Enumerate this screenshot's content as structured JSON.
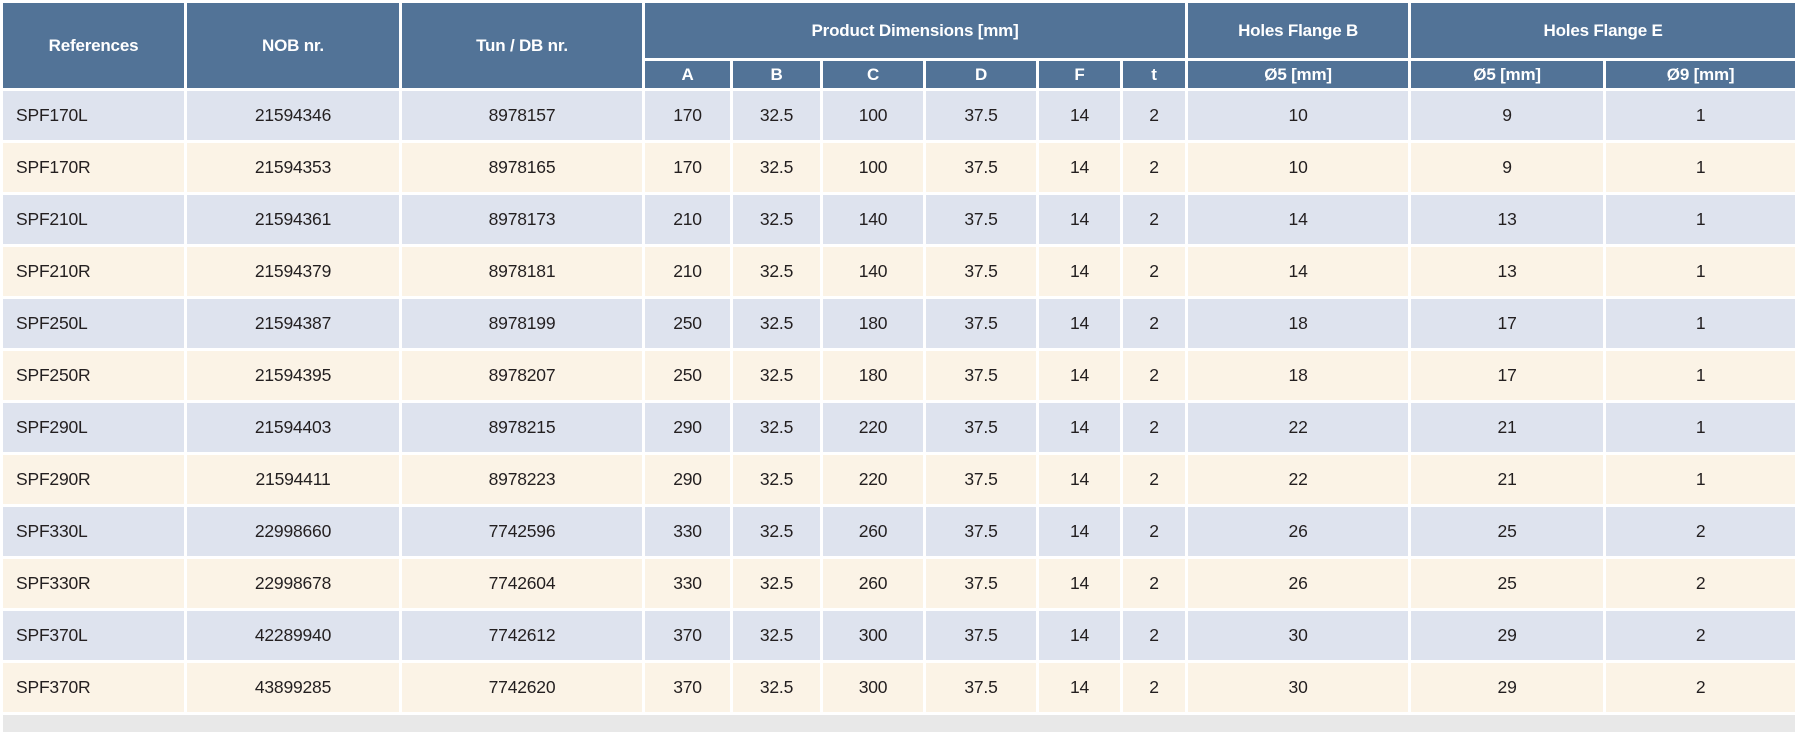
{
  "colors": {
    "header_bg": "#527397",
    "header_text": "#ffffff",
    "row_blue": "#dee3ee",
    "row_cream": "#fbf3e6",
    "body_text": "#231f20",
    "grid_gap": "#ffffff",
    "bottom_bar": "#e8e8e8"
  },
  "table": {
    "headers": {
      "references": "References",
      "nob": "NOB nr.",
      "tun": "Tun / DB nr.",
      "product_dimensions": "Product Dimensions [mm]",
      "dim_cols": [
        "A",
        "B",
        "C",
        "D",
        "F",
        "t"
      ],
      "holes_flange_b": "Holes Flange B",
      "holes_b_col": "Ø5 [mm]",
      "holes_flange_e": "Holes Flange E",
      "holes_e_col_1": "Ø5 [mm]",
      "holes_e_col_2": "Ø9 [mm]"
    },
    "column_keys": [
      "reference",
      "nob-nr",
      "tun-db-nr",
      "dim-a",
      "dim-b",
      "dim-c",
      "dim-d",
      "dim-f",
      "dim-t",
      "holes-b-o5",
      "holes-e-o5",
      "holes-e-o9"
    ],
    "rows": [
      [
        "SPF170L",
        "21594346",
        "8978157",
        "170",
        "32.5",
        "100",
        "37.5",
        "14",
        "2",
        "10",
        "9",
        "1"
      ],
      [
        "SPF170R",
        "21594353",
        "8978165",
        "170",
        "32.5",
        "100",
        "37.5",
        "14",
        "2",
        "10",
        "9",
        "1"
      ],
      [
        "SPF210L",
        "21594361",
        "8978173",
        "210",
        "32.5",
        "140",
        "37.5",
        "14",
        "2",
        "14",
        "13",
        "1"
      ],
      [
        "SPF210R",
        "21594379",
        "8978181",
        "210",
        "32.5",
        "140",
        "37.5",
        "14",
        "2",
        "14",
        "13",
        "1"
      ],
      [
        "SPF250L",
        "21594387",
        "8978199",
        "250",
        "32.5",
        "180",
        "37.5",
        "14",
        "2",
        "18",
        "17",
        "1"
      ],
      [
        "SPF250R",
        "21594395",
        "8978207",
        "250",
        "32.5",
        "180",
        "37.5",
        "14",
        "2",
        "18",
        "17",
        "1"
      ],
      [
        "SPF290L",
        "21594403",
        "8978215",
        "290",
        "32.5",
        "220",
        "37.5",
        "14",
        "2",
        "22",
        "21",
        "1"
      ],
      [
        "SPF290R",
        "21594411",
        "8978223",
        "290",
        "32.5",
        "220",
        "37.5",
        "14",
        "2",
        "22",
        "21",
        "1"
      ],
      [
        "SPF330L",
        "22998660",
        "7742596",
        "330",
        "32.5",
        "260",
        "37.5",
        "14",
        "2",
        "26",
        "25",
        "2"
      ],
      [
        "SPF330R",
        "22998678",
        "7742604",
        "330",
        "32.5",
        "260",
        "37.5",
        "14",
        "2",
        "26",
        "25",
        "2"
      ],
      [
        "SPF370L",
        "42289940",
        "7742612",
        "370",
        "32.5",
        "300",
        "37.5",
        "14",
        "2",
        "30",
        "29",
        "2"
      ],
      [
        "SPF370R",
        "43899285",
        "7742620",
        "370",
        "32.5",
        "300",
        "37.5",
        "14",
        "2",
        "30",
        "29",
        "2"
      ]
    ]
  }
}
